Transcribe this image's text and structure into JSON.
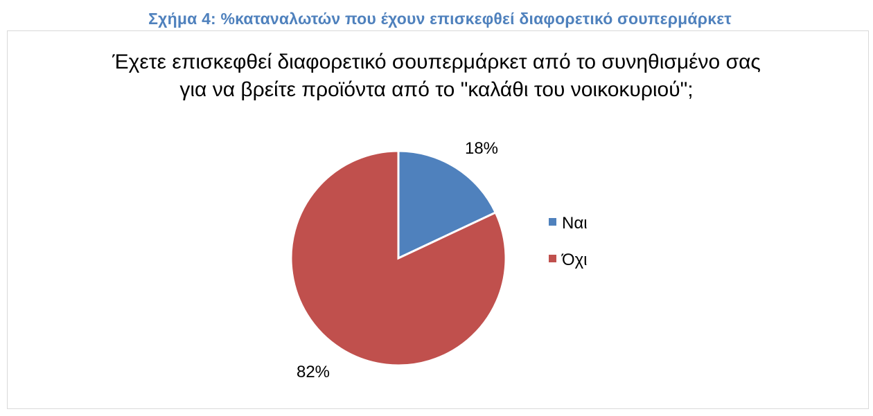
{
  "figure_caption": "Σχήμα 4: %καταναλωτών που έχουν επισκεφθεί διαφορετικό σουπερμάρκετ",
  "chart_data": {
    "type": "pie",
    "title_lines": [
      "Έχετε επισκεφθεί διαφορετικό σουπερμάρκετ από το συνηθισμένο σας",
      "για να βρείτε προϊόντα από το \"καλάθι του νοικοκυριού\";"
    ],
    "categories": [
      "Ναι",
      "Όχι"
    ],
    "values": [
      18,
      82
    ],
    "data_labels": [
      "18%",
      "82%"
    ],
    "colors": [
      "#4f81bd",
      "#c0504d"
    ],
    "legend_position": "right"
  }
}
